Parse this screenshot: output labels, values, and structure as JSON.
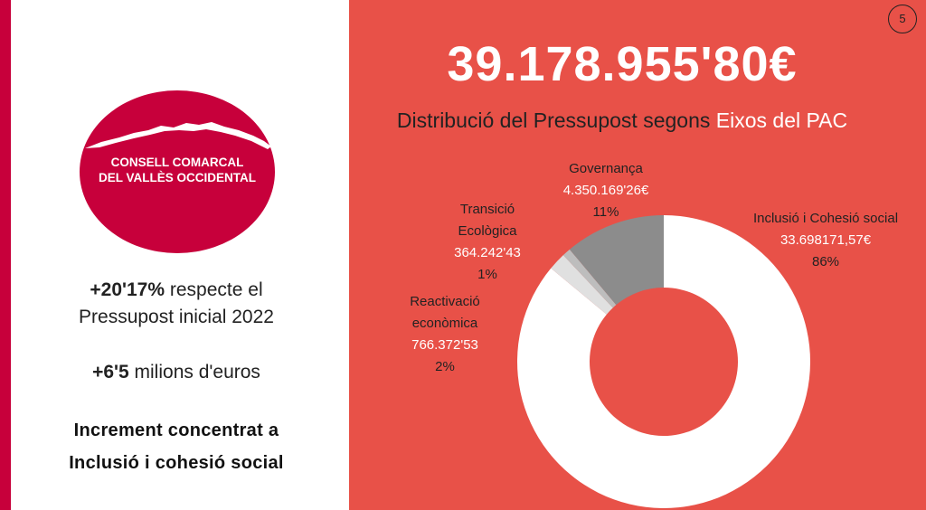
{
  "logo": {
    "line1": "CONSELL COMARCAL",
    "line2": "DEL VALLÈS OCCIDENTAL"
  },
  "stats": {
    "increase_pct": "+20'17%",
    "increase_text": " respecte el",
    "increase_ref": "Pressupost inicial 2022",
    "increase_amount": "+6'5",
    "increase_amount_text": " milions d'euros",
    "note_line1": "Increment concentrat a",
    "note_line2": "Inclusió i cohesió social"
  },
  "header": {
    "total": "39.178.955'80€",
    "subtitle_start": "Distribució del Pressupost segons ",
    "subtitle_accent": "Eixos del PAC"
  },
  "page_number": "5",
  "colors": {
    "background": "#e85148",
    "brand": "#c7003b",
    "white": "#ffffff",
    "dark": "#222222"
  },
  "chart_data": {
    "type": "pie",
    "variant": "donut",
    "slices": [
      {
        "name": "Inclusió i Cohesió social",
        "value": 33698171.57,
        "value_label": "33.698171,57€",
        "percent_label": "86%",
        "color": "#ffffff"
      },
      {
        "name": "Reactivació econòmica",
        "value": 766372.53,
        "value_label": "766.372'53",
        "percent_label": "2%",
        "color": "#e0e0e0"
      },
      {
        "name": "Transició Ecològica",
        "value": 364242.43,
        "value_label": "364.242'43",
        "percent_label": "1%",
        "color": "#bdbdbd"
      },
      {
        "name": "Governança",
        "value": 4350169.26,
        "value_label": "4.350.169'26€",
        "percent_label": "11%",
        "color": "#8c8c8c"
      }
    ],
    "legend": "none"
  },
  "chart_labels": {
    "incl_name": "Inclusió i Cohesió social",
    "reac_name_1": "Reactivació",
    "reac_name_2": "econòmica",
    "tran_name_1": "Transició",
    "tran_name_2": "Ecològica",
    "gov_name": "Governança"
  }
}
